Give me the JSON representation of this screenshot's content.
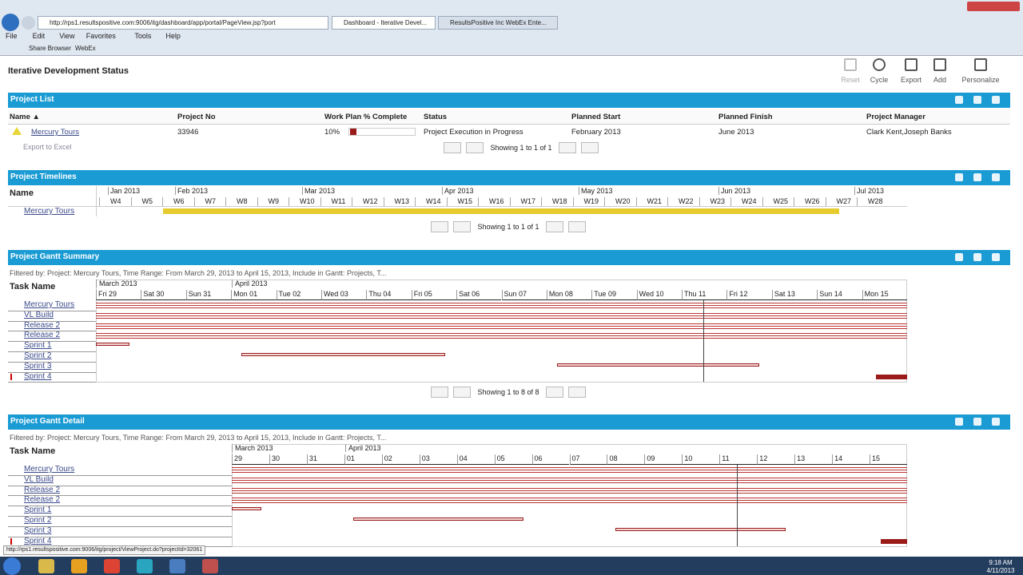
{
  "browser": {
    "url": "http://rps1.resultspositive.com:9006/itg/dashboard/app/portal/PageView.jsp?port",
    "tabs": [
      "Dashboard - Iterative Devel...",
      "ResultsPositive Inc WebEx Ente..."
    ],
    "menu": [
      "File",
      "Edit",
      "View",
      "Favorites",
      "Tools",
      "Help"
    ],
    "toolbar": [
      "Share Browser",
      "WebEx"
    ]
  },
  "page_title": "Iterative Development Status",
  "actions": [
    "Reset",
    "Cycle",
    "Export",
    "Add",
    "Personalize"
  ],
  "project_list": {
    "title": "Project List",
    "columns": [
      "Name ▲",
      "Project No",
      "Work Plan % Complete",
      "Status",
      "Planned Start",
      "Planned Finish",
      "Project Manager"
    ],
    "row": [
      "Mercury Tours",
      "33946",
      "10%",
      "Project Execution in Progress",
      "February 2013",
      "June 2013",
      "Clark Kent,Joseph Banks"
    ],
    "export": "Export to Excel",
    "pager": "Showing 1 to 1 of 1"
  },
  "timelines": {
    "title": "Project Timelines",
    "name_header": "Name",
    "months": [
      "Jan 2013",
      "Feb 2013",
      "Mar 2013",
      "Apr 2013",
      "May 2013",
      "Jun 2013",
      "Jul 2013"
    ],
    "weeks": [
      "W4",
      "W5",
      "W6",
      "W7",
      "W8",
      "W9",
      "W10",
      "W11",
      "W12",
      "W13",
      "W14",
      "W15",
      "W16",
      "W17",
      "W18",
      "W19",
      "W20",
      "W21",
      "W22",
      "W23",
      "W24",
      "W25",
      "W26",
      "W27",
      "W28"
    ],
    "rows": [
      "Mercury Tours"
    ],
    "pager": "Showing 1 to 1 of 1"
  },
  "gantt_summary": {
    "title": "Project Gantt Summary",
    "filter": "Filtered by: Project: Mercury Tours, Time Range: From March 29, 2013 to April 15, 2013, Include in Gantt: Projects, T...",
    "header": "Task Name",
    "months": [
      "March 2013",
      "April 2013"
    ],
    "days": [
      "Fri 29",
      "Sat 30",
      "Sun 31",
      "Mon 01",
      "Tue 02",
      "Wed 03",
      "Thu 04",
      "Fri 05",
      "Sat 06",
      "Sun 07",
      "Mon 08",
      "Tue 09",
      "Wed 10",
      "Thu 11",
      "Fri 12",
      "Sat 13",
      "Sun 14",
      "Mon 15"
    ],
    "tasks": [
      "Mercury Tours",
      "VL Build",
      "Release 2",
      "Release 2",
      "Sprint 1",
      "Sprint 2",
      "Sprint 3",
      "Sprint 4"
    ],
    "pager": "Showing 1 to 8 of 8"
  },
  "gantt_detail": {
    "title": "Project Gantt Detail",
    "filter": "Filtered by: Project: Mercury Tours, Time Range: From March 29, 2013 to April 15, 2013, Include in Gantt: Projects, T...",
    "header": "Task Name",
    "months": [
      "March 2013",
      "April 2013"
    ],
    "days": [
      "29",
      "30",
      "31",
      "01",
      "02",
      "03",
      "04",
      "05",
      "06",
      "07",
      "08",
      "09",
      "10",
      "11",
      "12",
      "13",
      "14",
      "15"
    ],
    "tasks": [
      "Mercury Tours",
      "VL Build",
      "Release 2",
      "Release 2",
      "Sprint 1",
      "Sprint 2",
      "Sprint 3",
      "Sprint 4"
    ]
  },
  "status_url": "http://rps1.resultspositive.com:9006/itg/project/ViewProject.do?projectId=32061",
  "clock": {
    "time": "9:18 AM",
    "date": "4/11/2013"
  }
}
